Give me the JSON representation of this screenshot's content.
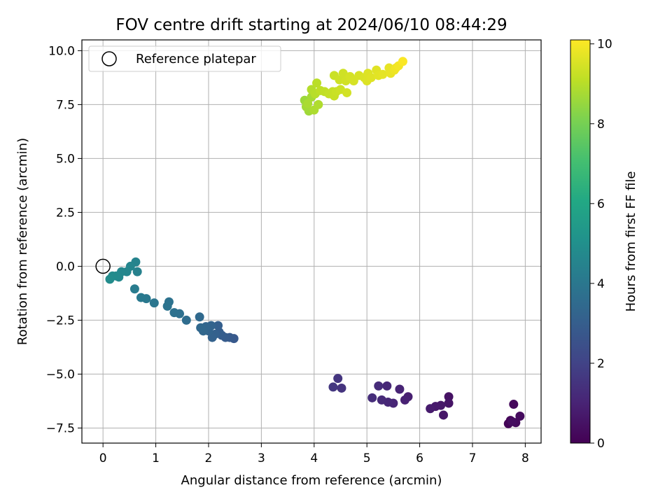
{
  "chart_data": {
    "type": "scatter",
    "title": "FOV centre drift starting at 2024/06/10 08:44:29",
    "xlabel": "Angular distance from reference (arcmin)",
    "ylabel": "Rotation from reference (arcmin)",
    "xlim": [
      -0.4,
      8.3
    ],
    "ylim": [
      -8.2,
      10.5
    ],
    "x_ticks": [
      0,
      1,
      2,
      3,
      4,
      5,
      6,
      7,
      8
    ],
    "y_ticks": [
      -7.5,
      -5.0,
      -2.5,
      0.0,
      2.5,
      5.0,
      7.5,
      10.0
    ],
    "grid": true,
    "legend": {
      "position": "upper-left",
      "entries": [
        "Reference platepar"
      ]
    },
    "reference_point": {
      "x": 0,
      "y": 0
    },
    "colorbar": {
      "label": "Hours from first FF file",
      "range": [
        0,
        10.1
      ],
      "ticks": [
        0,
        2,
        4,
        6,
        8,
        10
      ],
      "colormap": "viridis"
    },
    "series": [
      {
        "points": [
          {
            "x": 7.68,
            "y": -7.3,
            "h": 0.1
          },
          {
            "x": 7.72,
            "y": -7.15,
            "h": 0.15
          },
          {
            "x": 7.78,
            "y": -6.4,
            "h": 0.2
          },
          {
            "x": 7.82,
            "y": -7.25,
            "h": 0.25
          },
          {
            "x": 7.9,
            "y": -6.95,
            "h": 0.3
          },
          {
            "x": 7.75,
            "y": -7.2,
            "h": 0.35
          },
          {
            "x": 6.55,
            "y": -6.05,
            "h": 0.5
          },
          {
            "x": 6.55,
            "y": -6.35,
            "h": 0.55
          },
          {
            "x": 6.45,
            "y": -6.9,
            "h": 0.6
          },
          {
            "x": 6.4,
            "y": -6.45,
            "h": 0.65
          },
          {
            "x": 6.3,
            "y": -6.5,
            "h": 0.7
          },
          {
            "x": 6.2,
            "y": -6.6,
            "h": 0.75
          },
          {
            "x": 5.78,
            "y": -6.05,
            "h": 0.9
          },
          {
            "x": 5.72,
            "y": -6.2,
            "h": 0.95
          },
          {
            "x": 5.62,
            "y": -5.7,
            "h": 1.0
          },
          {
            "x": 5.5,
            "y": -6.35,
            "h": 1.05
          },
          {
            "x": 5.4,
            "y": -6.3,
            "h": 1.1
          },
          {
            "x": 5.38,
            "y": -5.55,
            "h": 1.15
          },
          {
            "x": 5.28,
            "y": -6.2,
            "h": 1.2
          },
          {
            "x": 5.22,
            "y": -5.55,
            "h": 1.25
          },
          {
            "x": 5.1,
            "y": -6.1,
            "h": 1.3
          },
          {
            "x": 4.52,
            "y": -5.65,
            "h": 1.5
          },
          {
            "x": 4.45,
            "y": -5.2,
            "h": 1.55
          },
          {
            "x": 4.36,
            "y": -5.6,
            "h": 1.6
          },
          {
            "x": 2.48,
            "y": -3.35,
            "h": 2.8
          },
          {
            "x": 2.4,
            "y": -3.3,
            "h": 2.85
          },
          {
            "x": 2.32,
            "y": -3.3,
            "h": 2.9
          },
          {
            "x": 2.25,
            "y": -3.2,
            "h": 2.95
          },
          {
            "x": 2.2,
            "y": -3.05,
            "h": 3.0
          },
          {
            "x": 2.18,
            "y": -2.75,
            "h": 3.05
          },
          {
            "x": 2.12,
            "y": -3.15,
            "h": 3.1
          },
          {
            "x": 2.07,
            "y": -3.3,
            "h": 3.15
          },
          {
            "x": 2.05,
            "y": -2.75,
            "h": 3.2
          },
          {
            "x": 2.0,
            "y": -3.0,
            "h": 3.25
          },
          {
            "x": 1.95,
            "y": -2.8,
            "h": 3.3
          },
          {
            "x": 1.9,
            "y": -3.0,
            "h": 3.35
          },
          {
            "x": 1.85,
            "y": -2.85,
            "h": 3.4
          },
          {
            "x": 1.83,
            "y": -2.35,
            "h": 3.45
          },
          {
            "x": 1.58,
            "y": -2.5,
            "h": 3.6
          },
          {
            "x": 1.45,
            "y": -2.2,
            "h": 3.7
          },
          {
            "x": 1.35,
            "y": -2.15,
            "h": 3.75
          },
          {
            "x": 1.25,
            "y": -1.65,
            "h": 3.8
          },
          {
            "x": 1.22,
            "y": -1.85,
            "h": 3.85
          },
          {
            "x": 0.97,
            "y": -1.7,
            "h": 3.95
          },
          {
            "x": 0.82,
            "y": -1.5,
            "h": 4.05
          },
          {
            "x": 0.72,
            "y": -1.45,
            "h": 4.1
          },
          {
            "x": 0.6,
            "y": -1.05,
            "h": 4.2
          },
          {
            "x": 0.65,
            "y": -0.25,
            "h": 4.4
          },
          {
            "x": 0.62,
            "y": 0.2,
            "h": 4.5
          },
          {
            "x": 0.52,
            "y": 0.0,
            "h": 4.55
          },
          {
            "x": 0.45,
            "y": -0.25,
            "h": 4.6
          },
          {
            "x": 0.35,
            "y": -0.25,
            "h": 4.65
          },
          {
            "x": 0.3,
            "y": -0.5,
            "h": 4.7
          },
          {
            "x": 0.25,
            "y": -0.45,
            "h": 4.75
          },
          {
            "x": 0.18,
            "y": -0.45,
            "h": 4.8
          },
          {
            "x": 0.13,
            "y": -0.6,
            "h": 4.85
          },
          {
            "x": 3.82,
            "y": 7.7,
            "h": 8.6
          },
          {
            "x": 3.9,
            "y": 7.2,
            "h": 8.65
          },
          {
            "x": 3.85,
            "y": 7.4,
            "h": 8.7
          },
          {
            "x": 3.95,
            "y": 7.85,
            "h": 8.75
          },
          {
            "x": 3.88,
            "y": 7.55,
            "h": 8.8
          },
          {
            "x": 4.0,
            "y": 7.25,
            "h": 8.85
          },
          {
            "x": 4.08,
            "y": 7.5,
            "h": 8.9
          },
          {
            "x": 3.95,
            "y": 8.2,
            "h": 8.95
          },
          {
            "x": 4.02,
            "y": 8.0,
            "h": 9.0
          },
          {
            "x": 4.05,
            "y": 8.5,
            "h": 9.05
          },
          {
            "x": 4.12,
            "y": 8.15,
            "h": 9.1
          },
          {
            "x": 4.2,
            "y": 8.1,
            "h": 9.15
          },
          {
            "x": 4.28,
            "y": 8.0,
            "h": 9.2
          },
          {
            "x": 4.35,
            "y": 8.1,
            "h": 9.22
          },
          {
            "x": 4.38,
            "y": 7.9,
            "h": 9.25
          },
          {
            "x": 4.42,
            "y": 8.1,
            "h": 9.28
          },
          {
            "x": 4.38,
            "y": 8.85,
            "h": 9.3
          },
          {
            "x": 4.5,
            "y": 8.2,
            "h": 9.32
          },
          {
            "x": 4.48,
            "y": 8.65,
            "h": 9.35
          },
          {
            "x": 4.55,
            "y": 8.95,
            "h": 9.38
          },
          {
            "x": 4.6,
            "y": 8.6,
            "h": 9.4
          },
          {
            "x": 4.62,
            "y": 8.05,
            "h": 9.42
          },
          {
            "x": 4.68,
            "y": 8.8,
            "h": 9.45
          },
          {
            "x": 4.75,
            "y": 8.6,
            "h": 9.48
          },
          {
            "x": 4.85,
            "y": 8.85,
            "h": 9.5
          },
          {
            "x": 4.95,
            "y": 8.75,
            "h": 9.55
          },
          {
            "x": 5.0,
            "y": 8.6,
            "h": 9.58
          },
          {
            "x": 5.02,
            "y": 8.95,
            "h": 9.6
          },
          {
            "x": 5.08,
            "y": 8.75,
            "h": 9.62
          },
          {
            "x": 5.18,
            "y": 9.1,
            "h": 9.65
          },
          {
            "x": 5.22,
            "y": 8.85,
            "h": 9.68
          },
          {
            "x": 5.3,
            "y": 8.9,
            "h": 9.72
          },
          {
            "x": 5.42,
            "y": 9.2,
            "h": 9.75
          },
          {
            "x": 5.45,
            "y": 8.95,
            "h": 9.78
          },
          {
            "x": 5.52,
            "y": 9.1,
            "h": 9.85
          },
          {
            "x": 5.55,
            "y": 9.2,
            "h": 9.9
          },
          {
            "x": 5.6,
            "y": 9.3,
            "h": 9.95
          },
          {
            "x": 5.68,
            "y": 9.5,
            "h": 10.05
          }
        ]
      }
    ]
  }
}
